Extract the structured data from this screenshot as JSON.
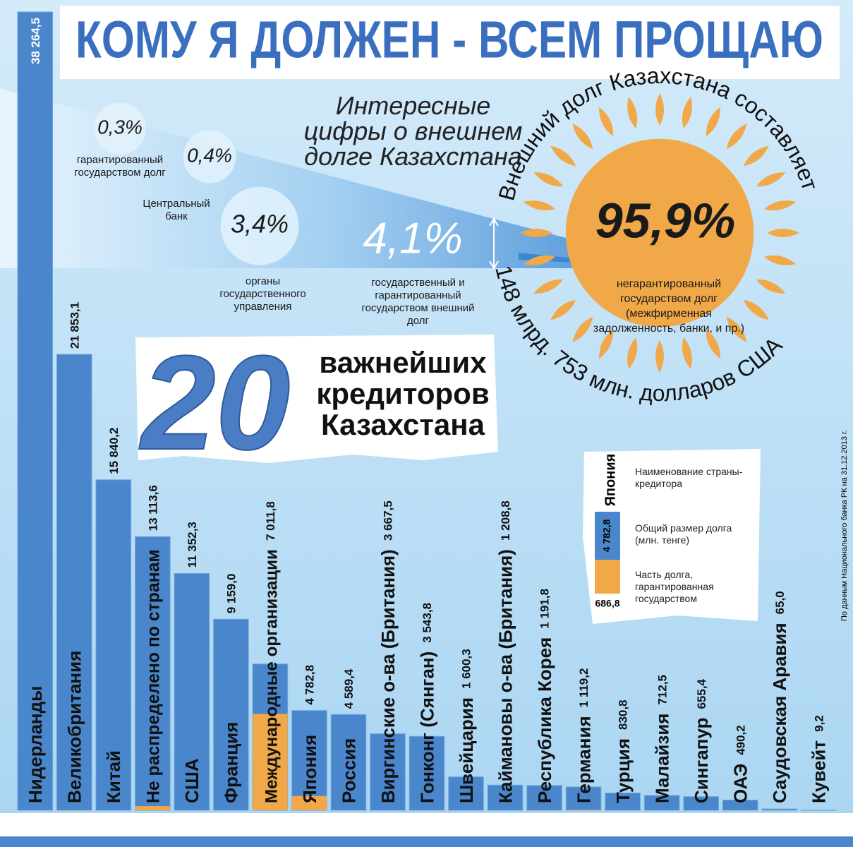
{
  "title": "КОМУ Я ДОЛЖЕН - ВСЕМ ПРОЩАЮ",
  "chart_data": [
    {
      "type": "share",
      "title": "Интересные цифры о внешнем долге Казахстана",
      "total_caption": "Внешний долг Казахстана составляет",
      "total_amount": "148 млрд. 753 млн. долларов США",
      "categories": [
        "негарантированный государством долг (межфирменная задолженность, банки, и пр.)",
        "государственный и гарантированный государством внешний долг"
      ],
      "values": [
        95.9,
        4.1
      ],
      "value_labels": [
        "95,9%",
        "4,1%"
      ],
      "colors": [
        "#f0a848",
        "#3d86d3"
      ],
      "parts": {
        "categories": [
          "гарантированный государством долг",
          "Центральный банк",
          "органы государственного управления"
        ],
        "values": [
          0.3,
          0.4,
          3.4
        ],
        "value_labels": [
          "0,3%",
          "0,4%",
          "3,4%"
        ]
      }
    },
    {
      "type": "bar",
      "title_number": "20",
      "title": "важнейших кредиторов Казахстана",
      "categories": [
        "Нидерланды",
        "Великобритания",
        "Китай",
        "Не распределено по странам",
        "США",
        "Франция",
        "Международные организации",
        "Япония",
        "Россия",
        "Виргинские о-ва (Британия)",
        "Гонконг (Сянган)",
        "Швейцария",
        "Каймановы о-ва (Британия)",
        "Республика Корея",
        "Германия",
        "Турция",
        "Малайзия",
        "Сингапур",
        "ОАЭ",
        "Саудовская Аравия",
        "Кувейт"
      ],
      "series": [
        {
          "name": "Общий размер долга (млн. тенге)",
          "color": "#4a86cc",
          "values": [
            38264.5,
            21853.1,
            15840.2,
            13113.6,
            11352.3,
            9159.0,
            7011.8,
            4782.8,
            4589.4,
            3667.5,
            3543.8,
            1600.3,
            1208.8,
            1191.8,
            1119.2,
            830.8,
            712.5,
            655.4,
            490.2,
            65.0,
            9.2
          ],
          "value_labels": [
            "38 264,5",
            "21 853,1",
            "15 840,2",
            "13 113,6",
            "11 352,3",
            "9 159,0",
            "7 011,8",
            "4 782,8",
            "4 589,4",
            "3 667,5",
            "3 543,8",
            "1 600,3",
            "1 208,8",
            "1 191,8",
            "1 119,2",
            "830,8",
            "712,5",
            "655,4",
            "490,2",
            "65,0",
            "9,2"
          ]
        },
        {
          "name": "Часть долга, гарантированная государством",
          "color": "#f0a848",
          "values": [
            0.0,
            13.8,
            0.0,
            200.0,
            0.0,
            0.0,
            4621.4,
            686.8,
            0.8,
            0.0,
            8.3,
            0.0,
            0.0,
            9.8,
            26.2,
            0.0,
            0.0,
            0.0,
            8.8,
            3.8,
            0.0
          ],
          "value_labels": [
            "0,0",
            "13,8",
            "0,0",
            "200,0",
            "0,0",
            "0,0",
            "4621,4",
            "686,8",
            "0,8",
            "0,0",
            "8,3",
            "0,0",
            "0,0",
            "9,8",
            "26,2",
            "0,0",
            "0,0",
            "0,0",
            "8,8",
            "3,8",
            "0,0"
          ]
        }
      ],
      "ylim": [
        0,
        38500
      ],
      "legend_category_caption": "Наименование страны-кредитора",
      "source": "По данным Национального банка РК на 31.12.2013 г."
    }
  ]
}
